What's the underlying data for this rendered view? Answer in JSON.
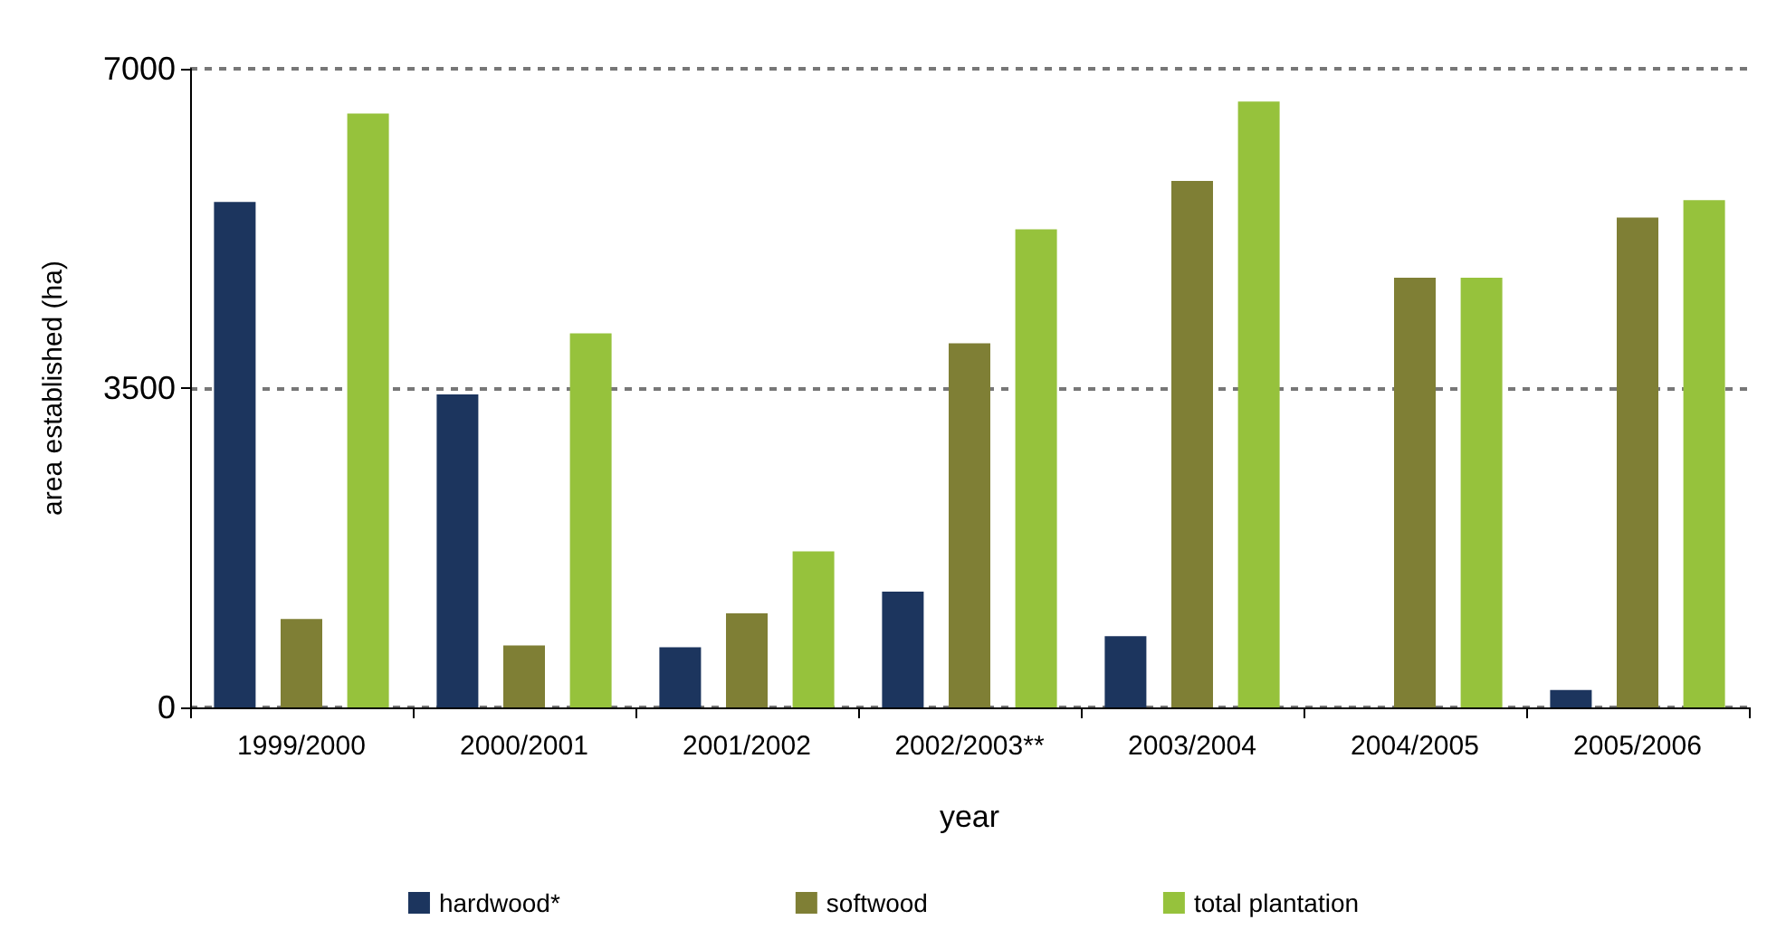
{
  "chart_data": {
    "type": "bar",
    "xlabel": "year",
    "ylabel": "area established (ha)",
    "categories": [
      "1999/2000",
      "2000/2001",
      "2001/2002",
      "2002/2003**",
      "2003/2004",
      "2004/2005",
      "2005/2006"
    ],
    "series": [
      {
        "name": "hardwood*",
        "color": "#1c355e",
        "values": [
          5540,
          3430,
          660,
          1270,
          780,
          0,
          190
        ]
      },
      {
        "name": "softwood",
        "color": "#7f7f35",
        "values": [
          970,
          680,
          1030,
          3990,
          5770,
          4710,
          5370
        ]
      },
      {
        "name": "total plantation",
        "color": "#96c23c",
        "values": [
          6510,
          4100,
          1710,
          5240,
          6640,
          4710,
          5560
        ]
      }
    ],
    "ylim": [
      0,
      7000
    ],
    "yticks": [
      0,
      3500,
      7000
    ],
    "grid": "y",
    "legend": "bottom"
  }
}
